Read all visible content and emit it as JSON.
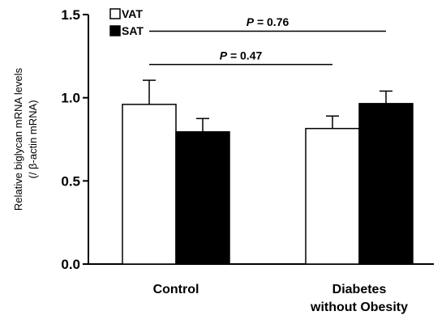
{
  "chart_data": {
    "type": "bar",
    "categories": [
      "Control",
      "Diabetes without Obesity"
    ],
    "category_lines": [
      [
        "Control"
      ],
      [
        "Diabetes",
        "without Obesity"
      ]
    ],
    "series": [
      {
        "name": "VAT",
        "values": [
          0.96,
          0.815
        ],
        "errors": [
          0.145,
          0.075
        ],
        "fill": "#ffffff"
      },
      {
        "name": "SAT",
        "values": [
          0.795,
          0.965
        ],
        "errors": [
          0.08,
          0.075
        ],
        "fill": "#000000"
      }
    ],
    "ylabel_lines": [
      "Relative biglycan mRNA levels",
      "(/ β-actin mRNA)"
    ],
    "xlabel": "",
    "ylim": [
      0,
      1.5
    ],
    "yticks": [
      "0.0",
      "0.5",
      "1.0",
      "1.5"
    ],
    "legend_position": "top-left",
    "annotations": [
      {
        "p_label": "P",
        "text": " = 0.76",
        "from_series": 0,
        "from_category": 0,
        "to_series": 1,
        "to_category": 1,
        "y_value": 1.4,
        "text_y_value": 1.455
      },
      {
        "p_label": "P",
        "text": " = 0.47",
        "from_series": 0,
        "from_category": 0,
        "to_series": 0,
        "to_category": 1,
        "y_value": 1.2,
        "text_y_value": 1.255
      }
    ]
  }
}
